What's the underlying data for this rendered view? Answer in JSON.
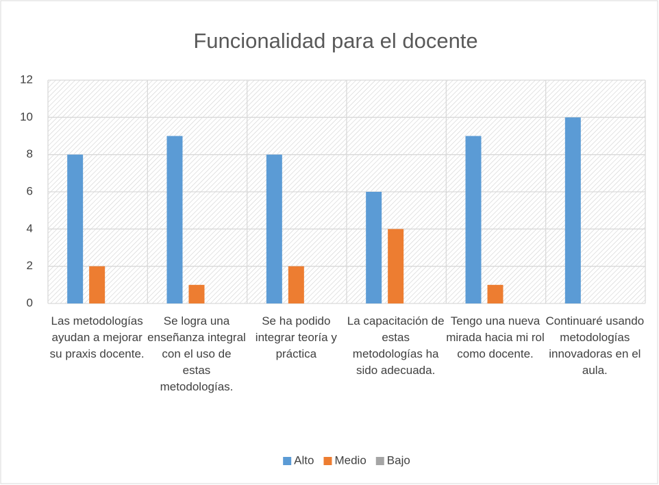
{
  "chart_data": {
    "type": "bar",
    "title": "Funcionalidad para el docente",
    "categories": [
      "Las metodologías ayudan a mejorar su praxis docente.",
      "Se logra una enseñanza integral con el uso de estas metodologías.",
      "Se ha podido integrar teoría y práctica",
      "La capacitación de estas metodologías ha sido adecuada.",
      "Tengo una nueva mirada hacia mi rol como docente.",
      "Continuaré usando metodologías innovadoras en el aula."
    ],
    "series": [
      {
        "name": "Alto",
        "color": "#5b9bd5",
        "values": [
          8,
          9,
          8,
          6,
          9,
          10
        ]
      },
      {
        "name": "Medio",
        "color": "#ed7d31",
        "values": [
          2,
          1,
          2,
          4,
          1,
          0
        ]
      },
      {
        "name": "Bajo",
        "color": "#a5a5a5",
        "values": [
          0,
          0,
          0,
          0,
          0,
          0
        ]
      }
    ],
    "ylim": [
      0,
      12
    ],
    "yticks": [
      0,
      2,
      4,
      6,
      8,
      10,
      12
    ],
    "grid": true,
    "legend": "bottom"
  }
}
